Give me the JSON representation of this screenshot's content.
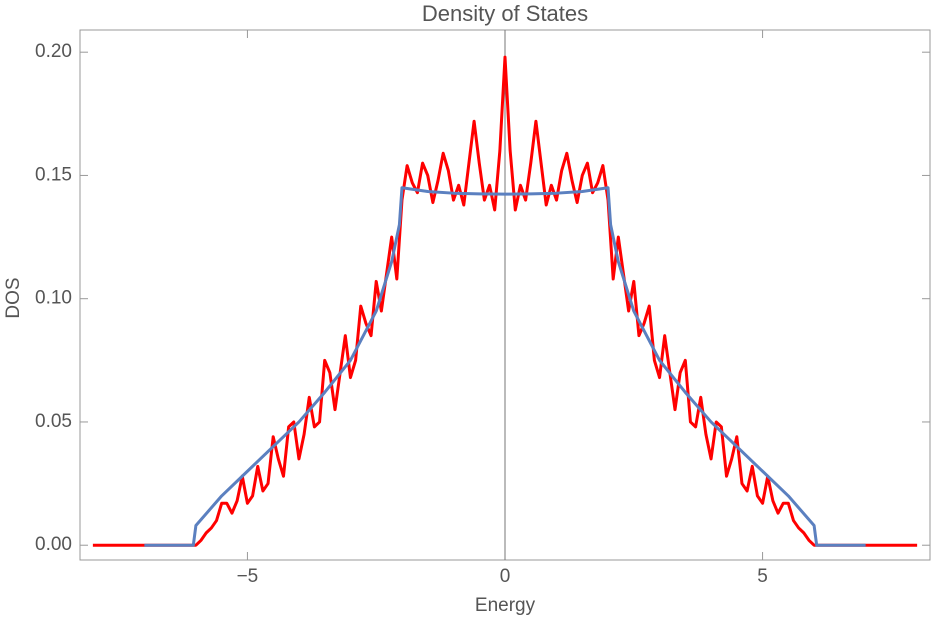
{
  "chart_data": {
    "type": "line",
    "title": "Density of States",
    "x_label": "Energy",
    "y_label": "DOS",
    "xlim": [
      -8.25,
      8.25
    ],
    "ylim": [
      -0.006,
      0.209
    ],
    "xticks": [
      {
        "value": -5,
        "label": "−5"
      },
      0,
      5
    ],
    "yticks": [
      {
        "value": 0,
        "label": "0.00"
      },
      {
        "value": 0.05,
        "label": "0.05"
      },
      {
        "value": 0.1,
        "label": "0.10"
      },
      {
        "value": 0.15,
        "label": "0.15"
      },
      {
        "value": 0.2,
        "label": "0.20"
      }
    ],
    "series": [
      {
        "color": "#ff0000",
        "x": [
          -8.0,
          -7.9,
          -7.8,
          -7.7,
          -7.6,
          -7.5,
          -7.4,
          -7.3,
          -7.2,
          -7.1,
          -7.0,
          -6.9,
          -6.8,
          -6.7,
          -6.6,
          -6.5,
          -6.4,
          -6.3,
          -6.2,
          -6.1,
          -6.0,
          -5.9,
          -5.8,
          -5.7,
          -5.6,
          -5.5,
          -5.4,
          -5.3,
          -5.2,
          -5.1,
          -5.0,
          -4.9,
          -4.8,
          -4.7,
          -4.6,
          -4.5,
          -4.4,
          -4.3,
          -4.2,
          -4.1,
          -4.0,
          -3.9,
          -3.8,
          -3.7,
          -3.6,
          -3.5,
          -3.4,
          -3.3,
          -3.2,
          -3.1,
          -3.0,
          -2.9,
          -2.8,
          -2.7,
          -2.6,
          -2.5,
          -2.4,
          -2.3,
          -2.2,
          -2.1,
          -2.0,
          -1.9,
          -1.8,
          -1.7,
          -1.6,
          -1.5,
          -1.4,
          -1.3,
          -1.2,
          -1.1,
          -1.0,
          -0.9,
          -0.8,
          -0.7,
          -0.6,
          -0.5,
          -0.4,
          -0.3,
          -0.2,
          -0.1,
          0,
          0.1,
          0.2,
          0.3,
          0.4,
          0.5,
          0.6,
          0.7,
          0.8,
          0.9,
          1.0,
          1.1,
          1.2,
          1.3,
          1.4,
          1.5,
          1.6,
          1.7,
          1.8,
          1.9,
          2.0,
          2.1,
          2.2,
          2.3,
          2.4,
          2.5,
          2.6,
          2.7,
          2.8,
          2.9,
          3.0,
          3.1,
          3.2,
          3.3,
          3.4,
          3.5,
          3.6,
          3.7,
          3.8,
          3.9,
          4.0,
          4.1,
          4.2,
          4.3,
          4.4,
          4.5,
          4.6,
          4.7,
          4.8,
          4.9,
          5.0,
          5.1,
          5.2,
          5.3,
          5.4,
          5.5,
          5.6,
          5.7,
          5.8,
          5.9,
          6.0,
          6.1,
          6.2,
          6.3,
          6.4,
          6.5,
          6.6,
          6.7,
          6.8,
          6.9,
          7.0,
          7.1,
          7.2,
          7.3,
          7.4,
          7.5,
          7.6,
          7.7,
          7.8,
          7.9,
          8.0
        ],
        "values": [
          0,
          0,
          0,
          0,
          0,
          0,
          0,
          0,
          0,
          0,
          0,
          0,
          0,
          0,
          0,
          0,
          0,
          0,
          0,
          0,
          0,
          0.002,
          0.005,
          0.007,
          0.01,
          0.017,
          0.017,
          0.013,
          0.018,
          0.028,
          0.017,
          0.02,
          0.032,
          0.022,
          0.025,
          0.044,
          0.035,
          0.028,
          0.048,
          0.05,
          0.035,
          0.045,
          0.06,
          0.048,
          0.05,
          0.075,
          0.07,
          0.055,
          0.07,
          0.085,
          0.068,
          0.075,
          0.097,
          0.09,
          0.085,
          0.107,
          0.095,
          0.11,
          0.125,
          0.108,
          0.14,
          0.154,
          0.147,
          0.143,
          0.155,
          0.15,
          0.139,
          0.148,
          0.159,
          0.152,
          0.14,
          0.146,
          0.138,
          0.155,
          0.172,
          0.155,
          0.14,
          0.146,
          0.136,
          0.16,
          0.198,
          0.16,
          0.136,
          0.146,
          0.14,
          0.155,
          0.172,
          0.155,
          0.138,
          0.146,
          0.14,
          0.152,
          0.159,
          0.148,
          0.139,
          0.15,
          0.155,
          0.143,
          0.147,
          0.154,
          0.14,
          0.108,
          0.125,
          0.11,
          0.095,
          0.107,
          0.085,
          0.09,
          0.097,
          0.075,
          0.068,
          0.085,
          0.07,
          0.055,
          0.07,
          0.075,
          0.05,
          0.048,
          0.06,
          0.045,
          0.035,
          0.05,
          0.048,
          0.028,
          0.035,
          0.044,
          0.025,
          0.022,
          0.032,
          0.02,
          0.017,
          0.028,
          0.018,
          0.013,
          0.017,
          0.017,
          0.01,
          0.007,
          0.005,
          0.002,
          0,
          0,
          0,
          0,
          0,
          0,
          0,
          0,
          0,
          0,
          0,
          0,
          0,
          0,
          0,
          0,
          0,
          0,
          0,
          0,
          0
        ]
      },
      {
        "color": "#5b80c0",
        "x": [
          -7,
          -6.05,
          -6,
          -5.5,
          -5,
          -4.5,
          -4,
          -3.5,
          -3,
          -2.5,
          -2.2,
          -2.05,
          -2,
          -1.5,
          -1,
          -0.5,
          0,
          0.5,
          1,
          1.5,
          2,
          2.05,
          2.2,
          2.5,
          3,
          3.5,
          4,
          4.5,
          5,
          5.5,
          6,
          6.05,
          7
        ],
        "values": [
          0,
          0,
          0.008,
          0.02,
          0.03,
          0.04,
          0.05,
          0.062,
          0.075,
          0.095,
          0.115,
          0.13,
          0.145,
          0.1435,
          0.1428,
          0.1425,
          0.1424,
          0.1425,
          0.1428,
          0.1435,
          0.145,
          0.13,
          0.115,
          0.095,
          0.075,
          0.062,
          0.05,
          0.04,
          0.03,
          0.02,
          0.008,
          0,
          0
        ]
      }
    ]
  }
}
